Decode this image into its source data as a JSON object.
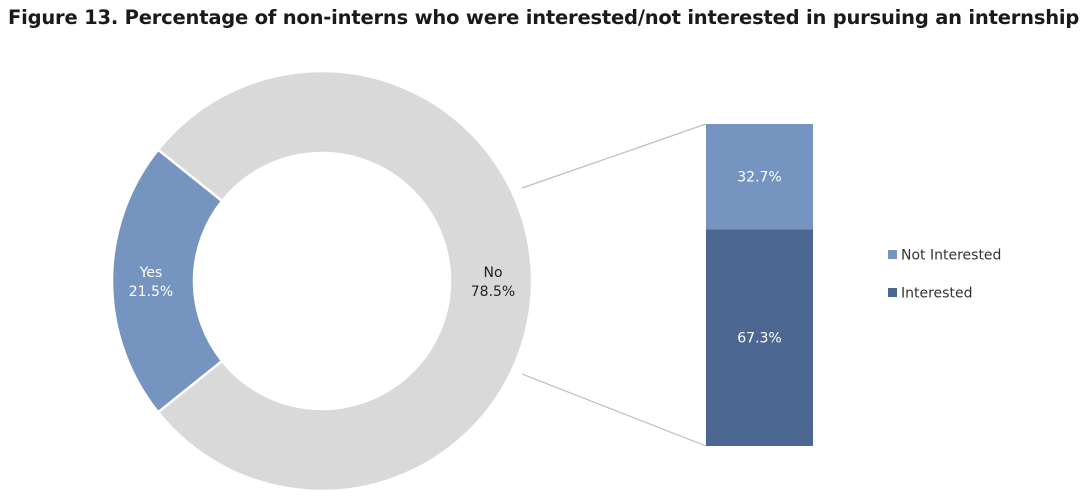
{
  "chart_data": {
    "type": "pie",
    "title": "Figure 13. Percentage of non-interns who were interested/not interested in pursuing an internship",
    "pie": {
      "slices": [
        {
          "label": "Yes",
          "value": 21.5,
          "value_label": "21.5%",
          "color": "#7594bf"
        },
        {
          "label": "No",
          "value": 78.5,
          "value_label": "78.5%",
          "color": "#d9d9d9"
        }
      ]
    },
    "breakdown_bar": {
      "of_slice": "No",
      "segments": [
        {
          "label": "Not Interested",
          "value": 32.7,
          "value_label": "32.7%",
          "color": "#7594bf"
        },
        {
          "label": "Interested",
          "value": 67.3,
          "value_label": "67.3%",
          "color": "#4d6793"
        }
      ]
    },
    "legend": {
      "placement": "right",
      "entries": [
        {
          "label": "Not Interested",
          "color": "#7594bf"
        },
        {
          "label": "Interested",
          "color": "#4d6793"
        }
      ]
    }
  }
}
